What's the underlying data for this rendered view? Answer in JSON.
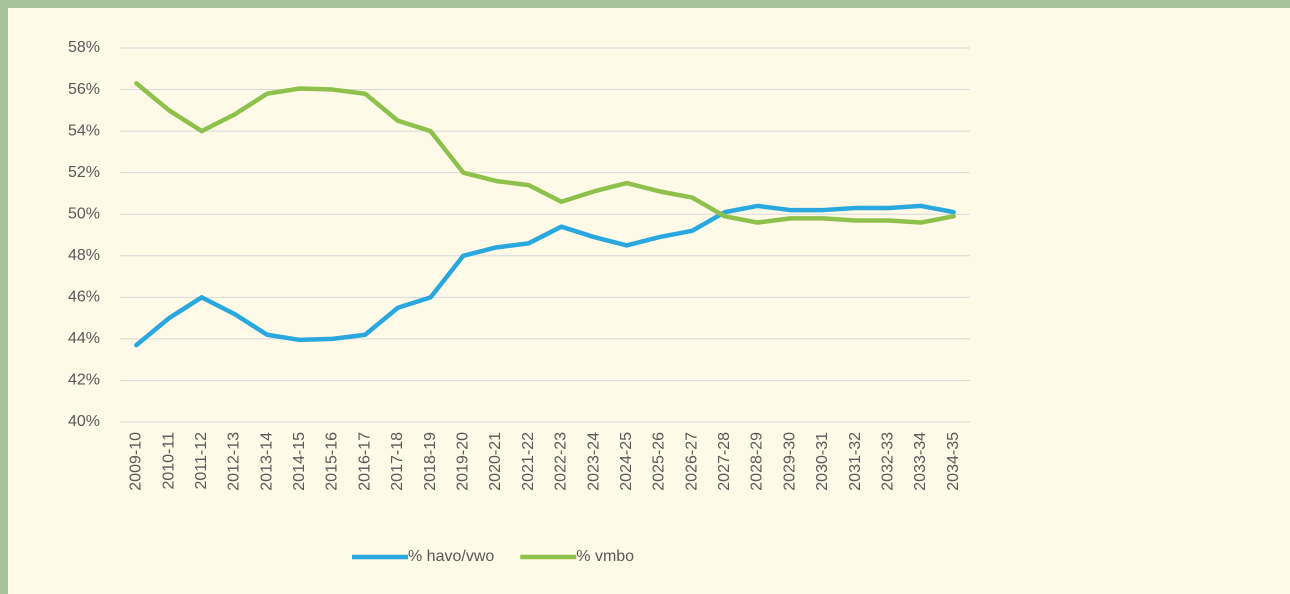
{
  "chart_data": {
    "type": "line",
    "categories": [
      "2009-10",
      "2010-11",
      "2011-12",
      "2012-13",
      "2013-14",
      "2014-15",
      "2015-16",
      "2016-17",
      "2017-18",
      "2018-19",
      "2019-20",
      "2020-21",
      "2021-22",
      "2022-23",
      "2023-24",
      "2024-25",
      "2025-26",
      "2026-27",
      "2027-28",
      "2028-29",
      "2029-30",
      "2030-31",
      "2031-32",
      "2032-33",
      "2033-34",
      "2034-35"
    ],
    "series": [
      {
        "name": "% havo/vwo",
        "color": "#29a8e0",
        "values": [
          43.7,
          45.0,
          46.0,
          45.2,
          44.2,
          43.95,
          44.0,
          44.2,
          45.5,
          46.0,
          48.0,
          48.4,
          48.6,
          49.4,
          48.9,
          48.5,
          48.9,
          49.2,
          50.1,
          50.4,
          50.2,
          50.2,
          50.3,
          50.3,
          50.4,
          50.1
        ]
      },
      {
        "name": "% vmbo",
        "color": "#8dc14b",
        "values": [
          56.3,
          55.0,
          54.0,
          54.8,
          55.8,
          56.05,
          56.0,
          55.8,
          54.5,
          54.0,
          52.0,
          51.6,
          51.4,
          50.6,
          51.1,
          51.5,
          51.1,
          50.8,
          49.9,
          49.6,
          49.8,
          49.8,
          49.7,
          49.7,
          49.6,
          49.9
        ]
      }
    ],
    "ylim": [
      40,
      58
    ],
    "yticks": [
      {
        "value": 40,
        "label": "40%"
      },
      {
        "value": 42,
        "label": "42%"
      },
      {
        "value": 44,
        "label": "44%"
      },
      {
        "value": 46,
        "label": "46%"
      },
      {
        "value": 48,
        "label": "48%"
      },
      {
        "value": 50,
        "label": "50%"
      },
      {
        "value": 52,
        "label": "52%"
      },
      {
        "value": 54,
        "label": "54%"
      },
      {
        "value": 56,
        "label": "56%"
      },
      {
        "value": 58,
        "label": "58%"
      }
    ],
    "grid": true,
    "legend": "bottom"
  }
}
